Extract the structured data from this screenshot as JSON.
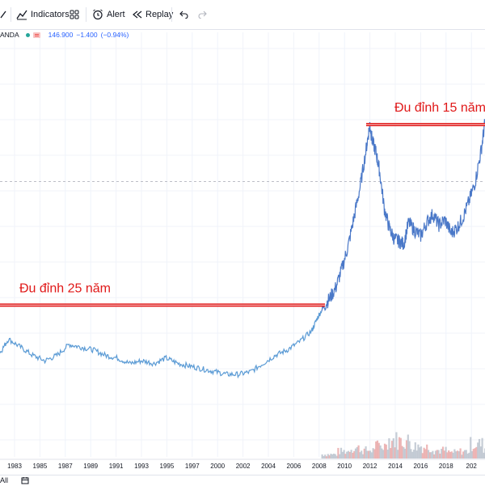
{
  "toolbar": {
    "indicators_label": "Indicators",
    "alert_label": "Alert",
    "replay_label": "Replay"
  },
  "legend": {
    "symbol": "ANDA",
    "price": "146.900",
    "change": "−1.400",
    "change_pct": "(−0.94%)"
  },
  "annotations": {
    "label_25": "Đu đỉnh 25 năm",
    "label_15": "Đu đỉnh 15 năm"
  },
  "bottombar": {
    "range_label": "All"
  },
  "colors": {
    "line": "#4a78c8",
    "line_old": "#5b9bd5",
    "marker": "#e01818",
    "grid": "#f0f3fa",
    "volume": "#b8c0cc"
  },
  "chart_data": {
    "type": "line",
    "x_ticks": [
      "1983",
      "1985",
      "1987",
      "1989",
      "1991",
      "1993",
      "1995",
      "1997",
      "2000",
      "2002",
      "2004",
      "2006",
      "2008",
      "2010",
      "2012",
      "2014",
      "2016",
      "2018",
      "202"
    ],
    "xlim": [
      1981.3,
      2021.3
    ],
    "ylim": [
      40,
      180
    ],
    "series": [
      {
        "x": [
          1981.3,
          1982,
          1983,
          1984,
          1985,
          1986,
          1987,
          1988,
          1989,
          1990,
          1991,
          1992,
          1993,
          1994,
          1995,
          1996,
          1997,
          1998,
          1999,
          2000,
          2001,
          2002,
          2003,
          2004,
          2005,
          2006,
          2007,
          2007.5,
          2008,
          2008.5,
          2009,
          2009.5,
          2010,
          2010.5,
          2011,
          2011.5,
          2011.8,
          2012,
          2012.3,
          2012.6,
          2013,
          2013.4,
          2013.8,
          2014.2,
          2014.6,
          2015,
          2015.5,
          2016,
          2016.5,
          2017,
          2017.5,
          2018,
          2018.5,
          2019,
          2019.5,
          2020,
          2020.5,
          2021,
          2021.3
        ],
        "y": [
          65,
          70,
          67,
          64,
          62,
          64,
          68,
          67,
          66,
          64,
          63,
          61,
          62,
          61,
          63,
          61,
          60,
          59,
          58,
          57,
          57,
          58,
          61,
          64,
          66,
          69,
          73,
          78,
          82,
          85,
          89,
          96,
          104,
          115,
          126,
          140,
          149,
          143,
          139,
          132,
          118,
          111,
          107,
          106,
          105,
          113,
          110,
          108,
          113,
          116,
          112,
          114,
          109,
          111,
          115,
          121,
          128,
          140,
          150
        ]
      }
    ],
    "volume": {
      "x": [
        2008,
        2009,
        2010,
        2011,
        2012,
        2013,
        2014,
        2015,
        2016,
        2017,
        2018,
        2019,
        2020,
        2021
      ],
      "v": [
        0.2,
        0.35,
        0.5,
        0.4,
        0.6,
        0.9,
        0.85,
        0.6,
        0.55,
        0.4,
        0.3,
        0.35,
        0.7,
        0.5
      ]
    },
    "levels": [
      {
        "y": 82.5,
        "x_start": 1981.3,
        "x_end": 2008.1,
        "label_key": "label_25"
      },
      {
        "y": 149,
        "x_start": 2011.5,
        "x_end": 2021.3,
        "label_key": "label_15"
      }
    ],
    "dashed_level": 128
  }
}
